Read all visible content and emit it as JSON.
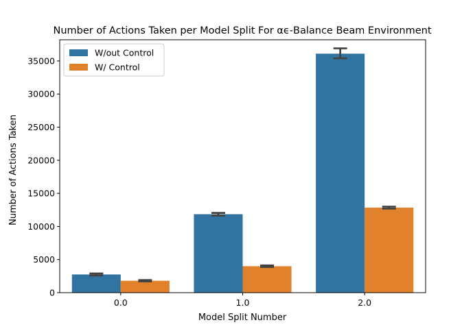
{
  "chart_data": {
    "type": "bar",
    "title": "Number of Actions Taken per Model Split For αϵ-Balance Beam Environment",
    "xlabel": "Model Split Number",
    "ylabel": "Number of Actions Taken",
    "categories": [
      "0.0",
      "1.0",
      "2.0"
    ],
    "ylim": [
      0,
      38200
    ],
    "yticks": [
      0,
      5000,
      10000,
      15000,
      20000,
      25000,
      30000,
      35000
    ],
    "grid": false,
    "legend_position": "top-left",
    "series": [
      {
        "name": "W/out Control",
        "color": "#3274a1",
        "values": [
          2750,
          11850,
          36100
        ],
        "error": [
          [
            2600,
            2900
          ],
          [
            11650,
            12050
          ],
          [
            35400,
            36900
          ]
        ]
      },
      {
        "name": "W/ Control",
        "color": "#e1812c",
        "values": [
          1800,
          4000,
          12850
        ],
        "error": [
          [
            1700,
            1900
          ],
          [
            3880,
            4120
          ],
          [
            12700,
            13000
          ]
        ]
      }
    ]
  }
}
